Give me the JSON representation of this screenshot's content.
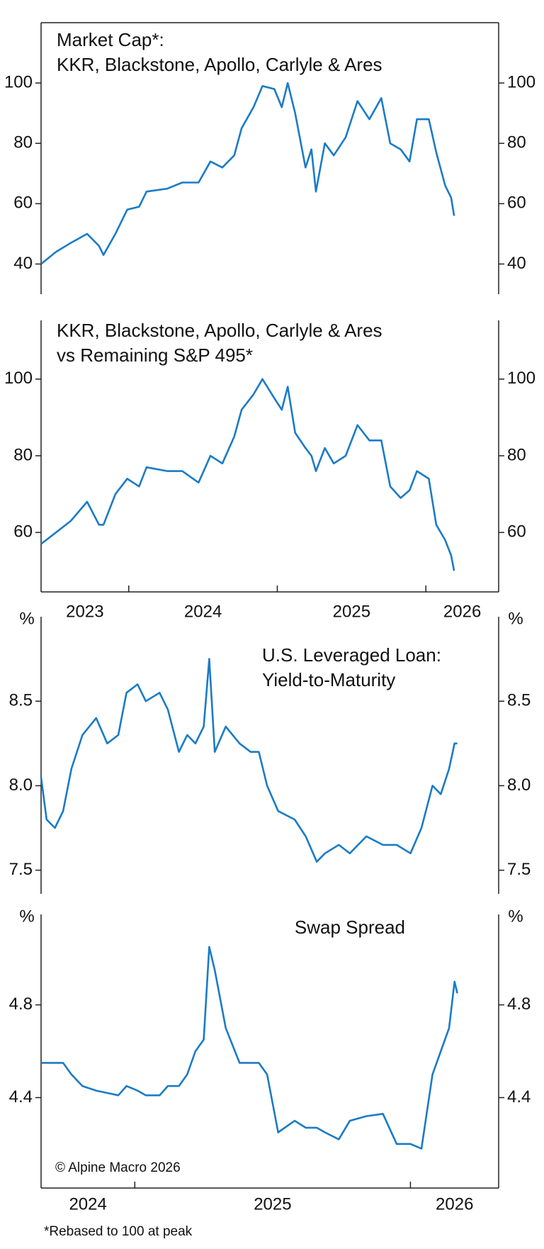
{
  "chart_data": [
    {
      "type": "line",
      "title": [
        "Market Cap*:",
        "KKR, Blackstone, Apollo, Carlyle & Ares"
      ],
      "color": "#1b7bc6",
      "xlim": [
        2023.41,
        2026.49
      ],
      "ylim": [
        30,
        120
      ],
      "yticks": [
        40,
        60,
        80,
        100
      ],
      "x": [
        2023.41,
        2023.51,
        2023.61,
        2023.72,
        2023.8,
        2023.83,
        2023.91,
        2023.99,
        2024.07,
        2024.12,
        2024.26,
        2024.36,
        2024.47,
        2024.55,
        2024.63,
        2024.71,
        2024.76,
        2024.84,
        2024.9,
        2024.98,
        2025.03,
        2025.07,
        2025.12,
        2025.19,
        2025.23,
        2025.26,
        2025.32,
        2025.38,
        2025.46,
        2025.54,
        2025.62,
        2025.7,
        2025.76,
        2025.83,
        2025.89,
        2025.94,
        2026.02,
        2026.07,
        2026.13,
        2026.17,
        2026.19
      ],
      "values": [
        40,
        44,
        47,
        50,
        46,
        43,
        50,
        58,
        59,
        64,
        65,
        67,
        67,
        74,
        72,
        76,
        85,
        92,
        99,
        98,
        92,
        100,
        90,
        72,
        78,
        64,
        80,
        76,
        82,
        94,
        88,
        95,
        80,
        78,
        74,
        88,
        88,
        77,
        66,
        62,
        56
      ]
    },
    {
      "type": "line",
      "title": [
        "KKR, Blackstone, Apollo, Carlyle & Ares",
        "vs Remaining S&P 495*"
      ],
      "color": "#1b7bc6",
      "xlim": [
        2023.41,
        2026.49
      ],
      "ylim": [
        44.5,
        115.3
      ],
      "yticks": [
        60,
        80,
        100
      ],
      "xticks": [
        2023,
        2024,
        2025,
        2026
      ],
      "x": [
        2023.41,
        2023.51,
        2023.61,
        2023.72,
        2023.8,
        2023.83,
        2023.91,
        2023.99,
        2024.07,
        2024.12,
        2024.26,
        2024.36,
        2024.47,
        2024.55,
        2024.63,
        2024.71,
        2024.76,
        2024.84,
        2024.9,
        2024.98,
        2025.03,
        2025.07,
        2025.12,
        2025.19,
        2025.23,
        2025.26,
        2025.32,
        2025.38,
        2025.46,
        2025.54,
        2025.62,
        2025.7,
        2025.76,
        2025.83,
        2025.89,
        2025.94,
        2026.02,
        2026.07,
        2026.13,
        2026.17,
        2026.19
      ],
      "values": [
        57,
        60,
        63,
        68,
        62,
        62,
        70,
        74,
        72,
        77,
        76,
        76,
        73,
        80,
        78,
        85,
        92,
        96,
        100,
        95,
        92,
        98,
        86,
        82,
        80,
        76,
        82,
        78,
        80,
        88,
        84,
        84,
        72,
        69,
        71,
        76,
        74,
        62,
        58,
        54,
        50
      ]
    },
    {
      "type": "line",
      "title": [
        "U.S. Leveraged Loan:",
        "Yield-to-Maturity"
      ],
      "y_unit": "%",
      "color": "#1b7bc6",
      "xlim": [
        2024.66,
        2026.32
      ],
      "ylim": [
        7.36,
        9.0
      ],
      "yticks": [
        7.5,
        {
          "value": 8,
          "label": "8.0"
        },
        8.5
      ],
      "x": [
        2024.66,
        2024.68,
        2024.71,
        2024.74,
        2024.77,
        2024.81,
        2024.86,
        2024.9,
        2024.94,
        2024.97,
        2025.01,
        2025.04,
        2025.09,
        2025.12,
        2025.16,
        2025.19,
        2025.22,
        2025.25,
        2025.27,
        2025.29,
        2025.33,
        2025.38,
        2025.42,
        2025.45,
        2025.48,
        2025.52,
        2025.58,
        2025.62,
        2025.66,
        2025.69,
        2025.74,
        2025.78,
        2025.84,
        2025.9,
        2025.95,
        2026.0,
        2026.04,
        2026.08,
        2026.11,
        2026.14,
        2026.16,
        2026.17
      ],
      "values": [
        8.05,
        7.8,
        7.75,
        7.85,
        8.1,
        8.3,
        8.4,
        8.25,
        8.3,
        8.55,
        8.6,
        8.5,
        8.55,
        8.45,
        8.2,
        8.3,
        8.25,
        8.35,
        8.75,
        8.2,
        8.35,
        8.25,
        8.2,
        8.2,
        8.0,
        7.85,
        7.8,
        7.7,
        7.55,
        7.6,
        7.65,
        7.6,
        7.7,
        7.65,
        7.65,
        7.6,
        7.75,
        8.0,
        7.95,
        8.1,
        8.25,
        8.25
      ]
    },
    {
      "type": "line",
      "title": [
        "Swap Spread"
      ],
      "y_unit": "%",
      "color": "#1b7bc6",
      "annotation": "© Alpine Macro 2026",
      "xlim": [
        2024.66,
        2026.32
      ],
      "ylim": [
        4.01,
        5.19
      ],
      "yticks": [
        4.4,
        4.8
      ],
      "xticks": [
        2024,
        2025,
        2026
      ],
      "x": [
        2024.66,
        2024.68,
        2024.71,
        2024.74,
        2024.77,
        2024.81,
        2024.86,
        2024.9,
        2024.94,
        2024.97,
        2025.01,
        2025.04,
        2025.09,
        2025.12,
        2025.16,
        2025.19,
        2025.22,
        2025.25,
        2025.27,
        2025.29,
        2025.33,
        2025.38,
        2025.42,
        2025.45,
        2025.48,
        2025.52,
        2025.58,
        2025.62,
        2025.66,
        2025.69,
        2025.74,
        2025.78,
        2025.84,
        2025.9,
        2025.95,
        2026.0,
        2026.04,
        2026.08,
        2026.11,
        2026.14,
        2026.16,
        2026.17
      ],
      "values": [
        4.55,
        4.55,
        4.55,
        4.55,
        4.5,
        4.45,
        4.43,
        4.42,
        4.41,
        4.45,
        4.43,
        4.41,
        4.41,
        4.45,
        4.45,
        4.5,
        4.6,
        4.65,
        5.05,
        4.95,
        4.7,
        4.55,
        4.55,
        4.55,
        4.5,
        4.25,
        4.3,
        4.27,
        4.27,
        4.25,
        4.22,
        4.3,
        4.32,
        4.33,
        4.2,
        4.2,
        4.18,
        4.5,
        4.6,
        4.7,
        4.9,
        4.85
      ]
    }
  ],
  "footnote": "*Rebased to 100 at peak"
}
